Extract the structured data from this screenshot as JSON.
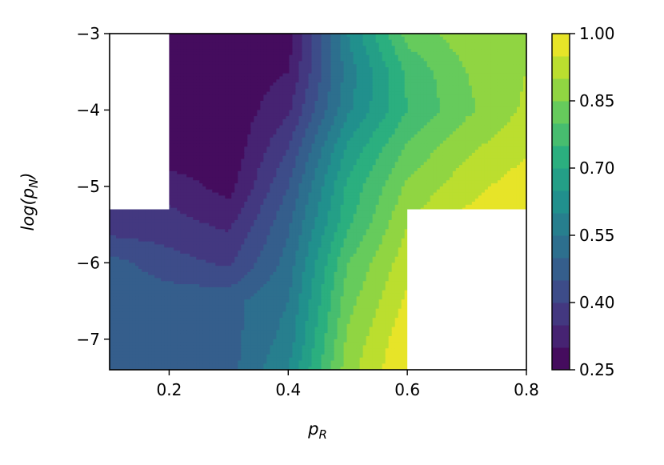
{
  "chart_data": {
    "type": "heatmap",
    "subtype": "filled-contour",
    "title": "",
    "xlabel": "p_R",
    "ylabel": "log(p_N)",
    "xlim": [
      0.1,
      0.8
    ],
    "ylim": [
      -7.4,
      -3.0
    ],
    "x_ticks": [
      0.2,
      0.4,
      0.6,
      0.8
    ],
    "y_ticks": [
      -3,
      -4,
      -5,
      -6,
      -7
    ],
    "x_tick_labels": [
      "0.2",
      "0.4",
      "0.6",
      "0.8"
    ],
    "y_tick_labels": [
      "−3",
      "−4",
      "−5",
      "−6",
      "−7"
    ],
    "colormap": "viridis",
    "colorbar": {
      "min": 0.25,
      "max": 1.0,
      "levels": 15,
      "ticks": [
        0.25,
        0.4,
        0.55,
        0.7,
        0.85,
        1.0
      ],
      "tick_labels": [
        "0.25",
        "0.40",
        "0.55",
        "0.70",
        "0.85",
        "1.00"
      ]
    },
    "masked_regions": [
      {
        "x": [
          0.1,
          0.2
        ],
        "y": [
          -5.3,
          -3.0
        ]
      },
      {
        "x": [
          0.6,
          0.8
        ],
        "y": [
          -7.4,
          -5.3
        ]
      }
    ],
    "grid": false,
    "x": [
      0.1,
      0.2,
      0.3,
      0.4,
      0.5,
      0.6,
      0.7,
      0.8
    ],
    "y": [
      -3.0,
      -3.5,
      -4.0,
      -4.5,
      -5.0,
      -5.5,
      -6.0,
      -6.5,
      -7.0,
      -7.4
    ],
    "z": [
      [
        0.26,
        0.26,
        0.26,
        0.27,
        0.6,
        0.82,
        0.88,
        0.9
      ],
      [
        0.26,
        0.26,
        0.26,
        0.3,
        0.57,
        0.76,
        0.85,
        0.9
      ],
      [
        0.26,
        0.26,
        0.26,
        0.34,
        0.59,
        0.75,
        0.84,
        0.91
      ],
      [
        0.27,
        0.26,
        0.26,
        0.4,
        0.66,
        0.81,
        0.89,
        0.94
      ],
      [
        0.33,
        0.33,
        0.28,
        0.45,
        0.71,
        0.86,
        0.93,
        0.98
      ],
      [
        0.37,
        0.37,
        0.34,
        0.49,
        0.74,
        0.9,
        0.97,
        1.0
      ],
      [
        0.47,
        0.42,
        0.39,
        0.52,
        0.8,
        0.93,
        0.99,
        1.0
      ],
      [
        0.48,
        0.48,
        0.48,
        0.55,
        0.83,
        0.96,
        1.0,
        1.0
      ],
      [
        0.46,
        0.49,
        0.48,
        0.57,
        0.86,
        0.99,
        1.0,
        1.0
      ],
      [
        0.48,
        0.49,
        0.48,
        0.6,
        0.88,
        1.0,
        1.0,
        1.0
      ]
    ]
  }
}
